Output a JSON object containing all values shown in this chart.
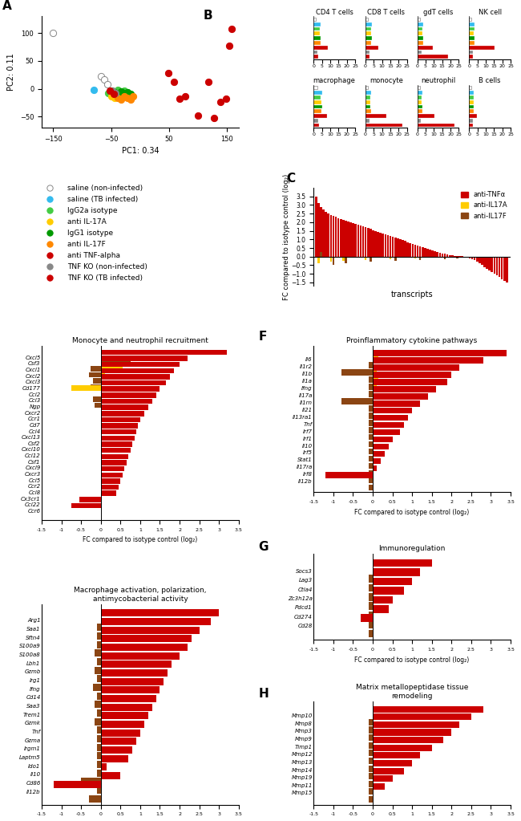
{
  "panel_A": {
    "xlabel": "PC1: 0.34",
    "ylabel": "PC2: 0.11",
    "xlim": [
      -170,
      170
    ],
    "ylim": [
      -70,
      130
    ],
    "xticks": [
      -150,
      -50,
      50,
      150
    ],
    "yticks": [
      -50,
      0,
      50,
      100
    ],
    "groups": {
      "saline_noninfected": {
        "color": "#ffffff",
        "edgecolor": "#888888",
        "points": [
          [
            -150,
            100
          ],
          [
            -68,
            22
          ],
          [
            -62,
            16
          ],
          [
            -57,
            8
          ]
        ]
      },
      "saline_TB": {
        "color": "#33bbee",
        "edgecolor": "#33bbee",
        "points": [
          [
            -80,
            -2
          ]
        ]
      },
      "IgG2a": {
        "color": "#44cc44",
        "edgecolor": "#44cc44",
        "points": [
          [
            -55,
            -8
          ],
          [
            -48,
            -4
          ],
          [
            -42,
            -6
          ],
          [
            -38,
            -2
          ],
          [
            -33,
            -5
          ],
          [
            -28,
            -3
          ],
          [
            -22,
            -6
          ]
        ]
      },
      "antiIL17A": {
        "color": "#ffcc00",
        "edgecolor": "#ffcc00",
        "points": [
          [
            -50,
            -14
          ],
          [
            -44,
            -16
          ],
          [
            -38,
            -12
          ],
          [
            -33,
            -14
          ],
          [
            -28,
            -10
          ],
          [
            -22,
            -12
          ],
          [
            -17,
            -14
          ]
        ]
      },
      "IgG1": {
        "color": "#009900",
        "edgecolor": "#009900",
        "points": [
          [
            -44,
            -7
          ],
          [
            -38,
            -10
          ],
          [
            -33,
            -5
          ],
          [
            -28,
            -8
          ],
          [
            -22,
            -6
          ],
          [
            -17,
            -9
          ]
        ]
      },
      "antiIL17F": {
        "color": "#ff8800",
        "edgecolor": "#ff8800",
        "points": [
          [
            -38,
            -17
          ],
          [
            -33,
            -20
          ],
          [
            -28,
            -14
          ],
          [
            -22,
            -17
          ],
          [
            -17,
            -20
          ],
          [
            -12,
            -14
          ]
        ]
      },
      "antiTNF": {
        "color": "#cc0000",
        "edgecolor": "#cc0000",
        "points": [
          [
            48,
            28
          ],
          [
            58,
            12
          ],
          [
            68,
            -18
          ],
          [
            78,
            -13
          ],
          [
            100,
            -48
          ],
          [
            118,
            12
          ],
          [
            128,
            -52
          ],
          [
            138,
            -23
          ],
          [
            148,
            -18
          ],
          [
            153,
            78
          ],
          [
            158,
            108
          ]
        ]
      },
      "TNFKO_noninfected": {
        "color": "#888888",
        "edgecolor": "#888888",
        "points": [
          [
            -48,
            -3
          ],
          [
            -43,
            -8
          ]
        ]
      },
      "TNFKO_TB": {
        "color": "#cc0000",
        "edgecolor": "#cc0000",
        "points": [
          [
            -53,
            -3
          ],
          [
            -46,
            -10
          ]
        ]
      }
    }
  },
  "panel_B": {
    "cell_types": [
      "CD4 T cells",
      "CD8 T cells",
      "gdT cells",
      "NK cell",
      "macrophage",
      "monocyte",
      "neutrophil",
      "B cells"
    ],
    "group_colors": [
      "#ffffff",
      "#33bbee",
      "#44cc44",
      "#ffcc00",
      "#009900",
      "#ff8800",
      "#cc0000",
      "#888888",
      "#cc0000"
    ],
    "group_edges": [
      "#888888",
      "#33bbee",
      "#44cc44",
      "#ffcc00",
      "#009900",
      "#ff8800",
      "#cc0000",
      "#888888",
      "#cc0000"
    ],
    "values": {
      "CD4 T cells": [
        1.5,
        4.0,
        3.5,
        3.2,
        3.8,
        3.6,
        8.0,
        2.0,
        2.5
      ],
      "CD8 T cells": [
        1.5,
        3.2,
        3.0,
        2.8,
        3.2,
        3.0,
        7.5,
        1.8,
        2.2
      ],
      "gdT cells": [
        1.5,
        3.0,
        2.8,
        2.7,
        2.9,
        3.2,
        9.0,
        2.0,
        18.0
      ],
      "NK cell": [
        1.5,
        2.8,
        2.6,
        2.5,
        2.7,
        2.8,
        15.0,
        1.8,
        2.0
      ],
      "macrophage": [
        2.5,
        4.5,
        4.0,
        4.2,
        4.5,
        4.3,
        7.5,
        2.5,
        3.0
      ],
      "monocyte": [
        1.5,
        2.8,
        2.5,
        2.4,
        2.6,
        2.8,
        12.0,
        1.8,
        22.0
      ],
      "neutrophil": [
        1.5,
        2.5,
        2.3,
        2.2,
        2.4,
        2.5,
        10.0,
        1.8,
        22.0
      ],
      "B cells": [
        1.5,
        2.5,
        2.3,
        2.2,
        2.4,
        2.5,
        4.0,
        1.8,
        2.0
      ]
    },
    "xlim": [
      0,
      25
    ],
    "xticks": [
      0,
      5,
      10,
      15,
      20,
      25
    ]
  },
  "legend_A": {
    "labels": [
      "saline (non-infected)",
      "saline (TB infected)",
      "IgG2a isotype",
      "anti IL-17A",
      "IgG1 isotype",
      "anti IL-17F",
      "anti TNF-alpha",
      "TNF KO (non-infected)",
      "TNF KO (TB infected)"
    ],
    "colors": [
      "#ffffff",
      "#33bbee",
      "#44cc44",
      "#ffcc00",
      "#009900",
      "#ff8800",
      "#cc0000",
      "#888888",
      "#cc0000"
    ],
    "edges": [
      "#888888",
      "#33bbee",
      "#44cc44",
      "#ffcc00",
      "#009900",
      "#ff8800",
      "#cc0000",
      "#888888",
      "#cc0000"
    ]
  },
  "legend_C": {
    "labels": [
      "anti-TNFα",
      "anti-IL17A",
      "anti-IL17F"
    ],
    "colors": [
      "#cc0000",
      "#ffcc00",
      "#8B4513"
    ]
  },
  "panel_C": {
    "ylabel": "FC compared to isotype control (log₂)",
    "xlabel": "transcripts",
    "yticks": [
      -1.5,
      -1,
      -0.5,
      0,
      0.5,
      1,
      1.5,
      2,
      2.5,
      3,
      3.5
    ],
    "ylim": [
      -1.7,
      4.0
    ],
    "red_vals": [
      3.5,
      3.1,
      2.9,
      2.75,
      2.6,
      2.5,
      2.4,
      2.35,
      2.3,
      2.25,
      2.2,
      2.15,
      2.1,
      2.05,
      2.0,
      1.95,
      1.9,
      1.85,
      1.8,
      1.75,
      1.7,
      1.65,
      1.6,
      1.55,
      1.5,
      1.45,
      1.4,
      1.35,
      1.3,
      1.25,
      1.2,
      1.15,
      1.1,
      1.05,
      1.0,
      0.95,
      0.9,
      0.85,
      0.8,
      0.75,
      0.7,
      0.65,
      0.6,
      0.55,
      0.5,
      0.45,
      0.4,
      0.35,
      0.3,
      0.25,
      0.2,
      0.18,
      0.15,
      0.12,
      0.1,
      0.08,
      0.05,
      0.03,
      0.02,
      0.01,
      -0.02,
      -0.05,
      -0.1,
      -0.15,
      -0.2,
      -0.3,
      -0.4,
      -0.5,
      -0.6,
      -0.7,
      -0.8,
      -0.9,
      -1.0,
      -1.1,
      -1.2,
      -1.3,
      -1.4,
      -1.5
    ],
    "gold_idx": [
      1,
      6,
      11,
      20,
      30,
      40,
      50,
      55,
      60,
      65,
      70
    ],
    "gold_vals": [
      -0.4,
      -0.3,
      -0.25,
      -0.2,
      -0.15,
      -0.1,
      -0.08,
      -0.07,
      -0.06,
      -0.05,
      -0.04
    ],
    "brown_idx": [
      2,
      7,
      12,
      22,
      32,
      42,
      52,
      57,
      62,
      67,
      72
    ],
    "brown_vals": [
      0.25,
      -0.5,
      -0.4,
      -0.3,
      -0.25,
      -0.2,
      -0.15,
      -0.1,
      -0.08,
      -0.06,
      -0.05
    ]
  },
  "panel_D": {
    "title": "Monocyte and neutrophil recruitment",
    "xlabel": "FC compared to isotype control (log₂)",
    "xlim": [
      -1.5,
      3.5
    ],
    "xtick_labels": [
      "-1.5",
      "-1",
      "-0.5",
      "0",
      "0.5",
      "1",
      "1.5",
      "2",
      "2.5",
      "3",
      "3.5"
    ],
    "xticks": [
      -1.5,
      -1,
      -0.5,
      0,
      0.5,
      1,
      1.5,
      2,
      2.5,
      3,
      3.5
    ],
    "genes": [
      "Cxcl5",
      "Csf3",
      "Cxcl1",
      "Cxcl2",
      "Cxcl3",
      "Cd177",
      "Ccl2",
      "Ccl3",
      "Ngp",
      "Cxcr2",
      "Ccr1",
      "Cd7",
      "Ccl4",
      "Cxcl13",
      "Csf2",
      "Cxcl10",
      "Ccl12",
      "Csf1",
      "Cxcl9",
      "Cxcr3",
      "Ccl5",
      "Ccr2",
      "Ccl8",
      "Cx3cr1",
      "Ccl22",
      "Ccr6"
    ],
    "red": [
      3.2,
      2.2,
      2.0,
      1.85,
      1.75,
      1.65,
      1.5,
      1.4,
      1.3,
      1.2,
      1.1,
      1.0,
      0.95,
      0.9,
      0.85,
      0.8,
      0.75,
      0.7,
      0.65,
      0.6,
      0.55,
      0.5,
      0.45,
      0.4,
      -0.55,
      -0.75
    ],
    "gold": [
      0.0,
      0.0,
      0.55,
      0.1,
      0.0,
      -0.75,
      0.0,
      0.0,
      0.0,
      0.0,
      0.0,
      0.0,
      0.0,
      0.0,
      0.0,
      0.0,
      0.0,
      0.0,
      0.0,
      0.0,
      0.0,
      0.0,
      0.0,
      0.0,
      0.0,
      0.0
    ],
    "brown": [
      0.75,
      -0.25,
      -0.3,
      -0.2,
      -0.25,
      0.0,
      -0.2,
      -0.15,
      0.0,
      0.0,
      0.0,
      0.0,
      0.0,
      0.0,
      0.0,
      0.0,
      0.0,
      0.0,
      0.0,
      0.0,
      0.0,
      0.0,
      0.0,
      0.0,
      0.0,
      0.0
    ]
  },
  "panel_E": {
    "title": "Macrophage activation, polarization,\nantimycobacterial activity",
    "xlabel": "FC compared to isotype control (log₂)",
    "xlim": [
      -1.5,
      3.5
    ],
    "xtick_labels": [
      "-1.5",
      "-1",
      "-0.5",
      "0",
      "0.5",
      "1",
      "1.5",
      "2",
      "2.5",
      "3",
      "3.5"
    ],
    "xticks": [
      -1.5,
      -1,
      -0.5,
      0,
      0.5,
      1,
      1.5,
      2,
      2.5,
      3,
      3.5
    ],
    "genes": [
      "Arg1",
      "Saa1",
      "Sftn4",
      "S100a9",
      "S100a8",
      "Lbh1",
      "Gzmb",
      "Irg1",
      "Ifng",
      "Cd14",
      "Saa3",
      "Trem1",
      "Gzmk",
      "Tnf",
      "Gzma",
      "Irgm1",
      "Laptm5",
      "Ido1",
      "Il10",
      "Cd86",
      "Il12b"
    ],
    "red": [
      3.0,
      2.8,
      2.5,
      2.3,
      2.2,
      2.0,
      1.8,
      1.7,
      1.6,
      1.5,
      1.4,
      1.3,
      1.2,
      1.1,
      1.0,
      0.9,
      0.8,
      0.7,
      0.15,
      0.5,
      -1.2
    ],
    "gold": [
      0.0,
      0.0,
      0.0,
      0.0,
      0.0,
      0.0,
      0.0,
      0.0,
      0.0,
      0.0,
      0.0,
      0.0,
      0.0,
      0.0,
      0.0,
      0.0,
      0.0,
      0.0,
      0.0,
      0.0,
      0.0
    ],
    "brown": [
      -0.1,
      -0.1,
      -0.1,
      -0.15,
      -0.1,
      -0.15,
      -0.1,
      -0.2,
      -0.1,
      -0.15,
      -0.1,
      -0.15,
      -0.1,
      -0.1,
      -0.1,
      -0.1,
      -0.1,
      -0.1,
      -0.5,
      -0.1,
      -0.3
    ]
  },
  "panel_F": {
    "title": "Proinflammatory cytokine pathways",
    "xlabel": "FC compared to isotype control (log₂)",
    "xlim": [
      -1.5,
      3.5
    ],
    "xtick_labels": [
      "-1.5",
      "-1",
      "-0.5",
      "0",
      "0.5",
      "1",
      "1.5",
      "2",
      "2.5",
      "3",
      "3.5"
    ],
    "xticks": [
      -1.5,
      -1,
      -0.5,
      0,
      0.5,
      1,
      1.5,
      2,
      2.5,
      3,
      3.5
    ],
    "genes": [
      "Il6",
      "Il1r2",
      "Il1b",
      "Il1a",
      "Ifng",
      "Il17a",
      "Il1rn",
      "Il21",
      "Il13ra1",
      "Tnf",
      "Irf7",
      "Irf1",
      "Il10",
      "Irf5",
      "Stat1",
      "Il17ra",
      "Irf8",
      "Il12b"
    ],
    "red": [
      3.4,
      2.8,
      2.2,
      2.0,
      1.9,
      1.6,
      1.4,
      1.2,
      1.0,
      0.9,
      0.8,
      0.7,
      0.5,
      0.4,
      0.3,
      0.2,
      0.1,
      -1.2
    ],
    "gold": [
      0.15,
      0.0,
      0.1,
      0.15,
      0.1,
      0.0,
      0.0,
      0.0,
      0.0,
      0.0,
      0.0,
      0.0,
      0.0,
      0.0,
      0.0,
      0.0,
      0.0,
      0.0
    ],
    "brown": [
      -0.1,
      -0.8,
      -0.1,
      -0.1,
      -0.1,
      -0.8,
      -0.1,
      -0.1,
      -0.1,
      -0.1,
      -0.1,
      -0.1,
      -0.1,
      -0.1,
      -0.1,
      -0.1,
      -0.1,
      -0.1
    ]
  },
  "panel_G": {
    "title": "Immunoregulation",
    "xlabel": "FC compared to isotype control (log₂)",
    "xlim": [
      -1.5,
      3.5
    ],
    "xtick_labels": [
      "-1.5",
      "-1",
      "-0.5",
      "0",
      "0.5",
      "1",
      "1.5",
      "2",
      "2.5",
      "3",
      "3.5"
    ],
    "xticks": [
      -1.5,
      -1,
      -0.5,
      0,
      0.5,
      1,
      1.5,
      2,
      2.5,
      3,
      3.5
    ],
    "genes": [
      "Socs3",
      "Lag3",
      "Ctla4",
      "Zc3h12a",
      "Pdcd1",
      "Cd274",
      "Cd28"
    ],
    "red": [
      1.5,
      1.2,
      1.0,
      0.8,
      0.5,
      0.4,
      -0.3
    ],
    "gold": [
      0.0,
      0.0,
      0.0,
      0.0,
      0.0,
      0.0,
      0.0
    ],
    "brown": [
      -0.1,
      -0.1,
      -0.1,
      -0.1,
      -0.1,
      -0.1,
      -0.1
    ]
  },
  "panel_H": {
    "title": "Matrix metallopeptidase tissue\nremodeling",
    "xlabel": "FC compared to isotype control (log₂)",
    "xlim": [
      -1.5,
      3.5
    ],
    "xtick_labels": [
      "-1.5",
      "-1",
      "-0.5",
      "0",
      "0.5",
      "1",
      "1.5",
      "2",
      "2.5",
      "3",
      "3.5"
    ],
    "xticks": [
      -1.5,
      -1,
      -0.5,
      0,
      0.5,
      1,
      1.5,
      2,
      2.5,
      3,
      3.5
    ],
    "genes": [
      "Mmp10",
      "Mmp8",
      "Mmp3",
      "Mmp9",
      "Timp1",
      "Mmp12",
      "Mmp13",
      "Mmp14",
      "Mmp19",
      "Mmp11",
      "Mmp15"
    ],
    "red": [
      2.8,
      2.5,
      2.2,
      2.0,
      1.8,
      1.5,
      1.2,
      1.0,
      0.8,
      0.5,
      0.3
    ],
    "gold": [
      0.0,
      0.0,
      0.0,
      0.0,
      0.0,
      0.0,
      0.0,
      0.0,
      0.0,
      0.0,
      0.0
    ],
    "brown": [
      -0.1,
      -0.1,
      -0.1,
      -0.1,
      -0.1,
      -0.1,
      -0.1,
      -0.1,
      -0.1,
      -0.1,
      -0.1
    ]
  },
  "colors": {
    "red": "#cc0000",
    "gold": "#ffcc00",
    "brown": "#8B4513"
  }
}
